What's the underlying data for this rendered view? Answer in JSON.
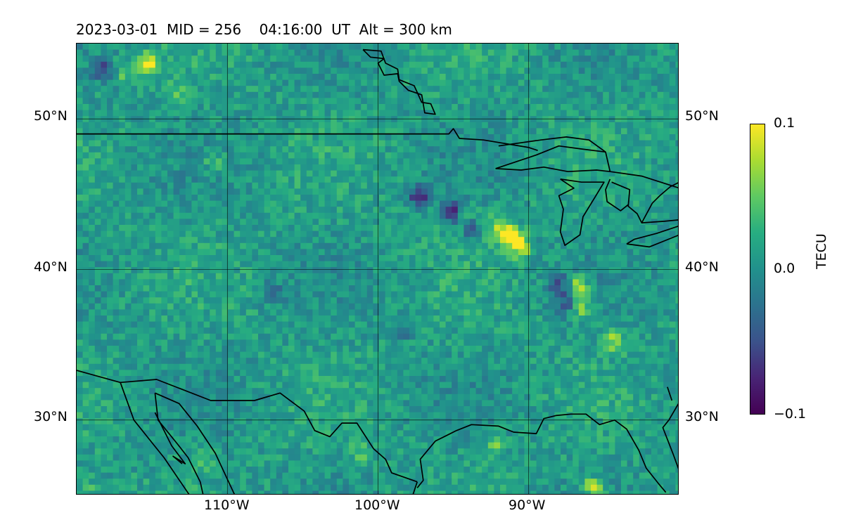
{
  "figure": {
    "title": "2023-03-01  MID = 256    04:16:00  UT  Alt = 300 km"
  },
  "map": {
    "projection": "plate-carree",
    "lon_range": [
      -120,
      -80
    ],
    "lat_range": [
      25,
      55
    ],
    "gridlines_lon": [
      -110,
      -100,
      -90
    ],
    "gridlines_lat": [
      50,
      40,
      30
    ],
    "lon_tick_labels": [
      "110°W",
      "100°W",
      "90°W"
    ],
    "lat_tick_labels_left": [
      "50°N",
      "40°N",
      "30°N"
    ],
    "lat_tick_labels_right": [
      "50°N",
      "40°N",
      "30°N"
    ],
    "coastline_color": "#000000",
    "features": [
      "US-Canada border",
      "Great Lakes",
      "Gulf of Mexico coast",
      "Mexico border",
      "Gulf of California",
      "Baja California"
    ]
  },
  "colorbar": {
    "label": "TECU",
    "ticks": [
      "0.1",
      "0.0",
      "−0.1"
    ],
    "range": [
      -0.1,
      0.1
    ],
    "colormap": "viridis",
    "colors": [
      "#440154",
      "#3b528b",
      "#21918c",
      "#5ec962",
      "#fde725"
    ]
  },
  "chart_data": {
    "type": "heatmap",
    "title": "2023-03-01  MID = 256    04:16:00  UT  Alt = 300 km",
    "xlabel": "",
    "ylabel": "",
    "xlim": [
      -120,
      -80
    ],
    "ylim": [
      25,
      55
    ],
    "colorbar_label": "TECU",
    "value_range": [
      -0.1,
      0.1
    ],
    "background_value": 0.01,
    "hotspots": [
      {
        "lon": -115.3,
        "lat": 53.6,
        "value": 0.095
      },
      {
        "lon": -116.8,
        "lat": 53.1,
        "value": 0.05
      },
      {
        "lon": -113.0,
        "lat": 51.9,
        "value": 0.05
      },
      {
        "lon": -118.2,
        "lat": 53.2,
        "value": -0.06
      },
      {
        "lon": -91.7,
        "lat": 42.4,
        "value": 0.1
      },
      {
        "lon": -90.9,
        "lat": 42.0,
        "value": 0.09
      },
      {
        "lon": -90.5,
        "lat": 41.4,
        "value": 0.07
      },
      {
        "lon": -93.0,
        "lat": 43.0,
        "value": 0.06
      },
      {
        "lon": -94.0,
        "lat": 43.5,
        "value": 0.05
      },
      {
        "lon": -93.6,
        "lat": 42.8,
        "value": -0.085
      },
      {
        "lon": -95.1,
        "lat": 43.8,
        "value": -0.07
      },
      {
        "lon": -97.3,
        "lat": 44.8,
        "value": -0.065
      },
      {
        "lon": -86.7,
        "lat": 38.9,
        "value": 0.085
      },
      {
        "lon": -86.5,
        "lat": 37.4,
        "value": 0.06
      },
      {
        "lon": -84.3,
        "lat": 35.3,
        "value": 0.07
      },
      {
        "lon": -88.0,
        "lat": 39.0,
        "value": -0.05
      },
      {
        "lon": -87.5,
        "lat": 37.8,
        "value": -0.04
      },
      {
        "lon": -110.8,
        "lat": 47.1,
        "value": 0.05
      },
      {
        "lon": -92.3,
        "lat": 28.4,
        "value": 0.055
      },
      {
        "lon": -85.7,
        "lat": 25.5,
        "value": 0.085
      },
      {
        "lon": -101.2,
        "lat": 27.8,
        "value": 0.04
      },
      {
        "lon": -111.5,
        "lat": 27.3,
        "value": 0.03
      },
      {
        "lon": -119.0,
        "lat": 25.4,
        "value": 0.04
      },
      {
        "lon": -98.5,
        "lat": 36.0,
        "value": -0.03
      },
      {
        "lon": -107.0,
        "lat": 38.5,
        "value": -0.02
      }
    ]
  }
}
